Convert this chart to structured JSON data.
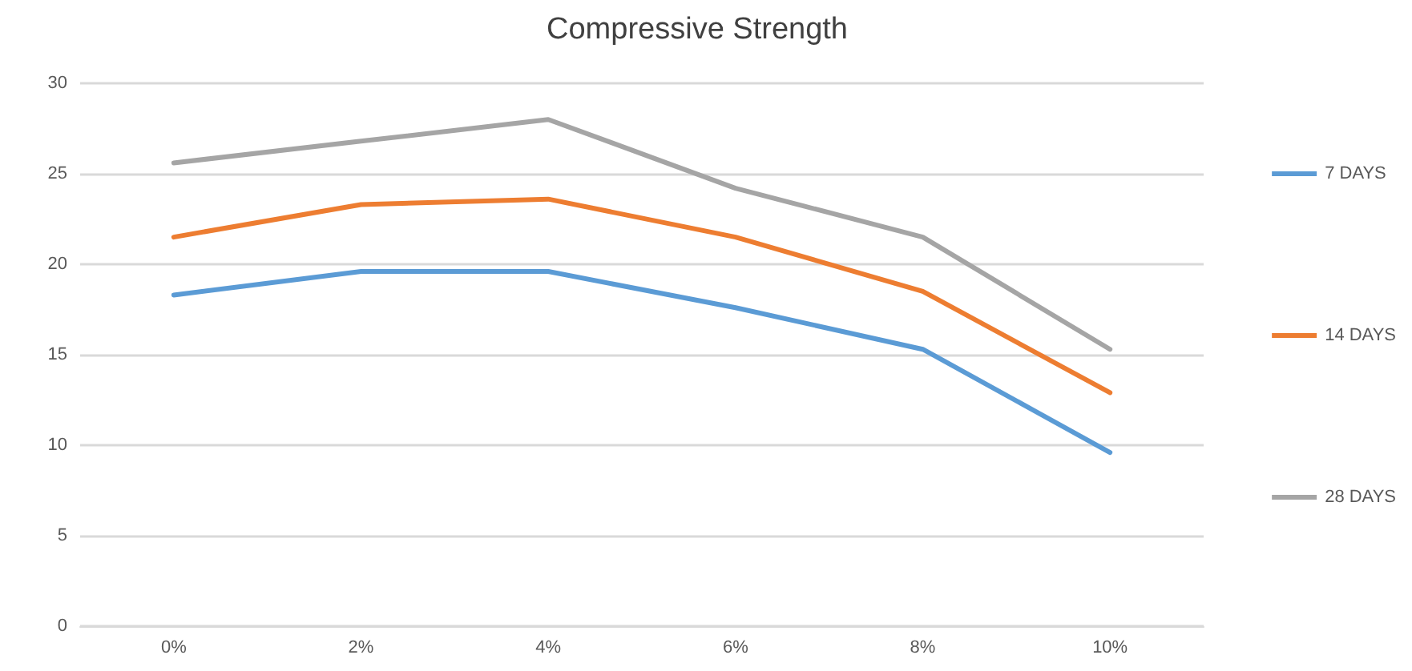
{
  "chart_data": {
    "type": "line",
    "title": "Compressive Strength",
    "categories": [
      "0%",
      "2%",
      "4%",
      "6%",
      "8%",
      "10%"
    ],
    "series": [
      {
        "name": "7 DAYS",
        "color": "#5b9bd5",
        "values": [
          18.3,
          19.6,
          19.6,
          17.6,
          15.3,
          9.6
        ]
      },
      {
        "name": "14 DAYS",
        "color": "#ed7d31",
        "values": [
          21.5,
          23.3,
          23.6,
          21.5,
          18.5,
          12.9
        ]
      },
      {
        "name": "28 DAYS",
        "color": "#a5a5a5",
        "values": [
          25.6,
          26.8,
          28.0,
          24.2,
          21.5,
          15.3
        ]
      }
    ],
    "ylim": [
      0,
      30
    ],
    "yticks": [
      0,
      5,
      10,
      15,
      20,
      25,
      30
    ],
    "grid": "y",
    "legend": "right",
    "marker": "none",
    "line_style": "solid"
  }
}
